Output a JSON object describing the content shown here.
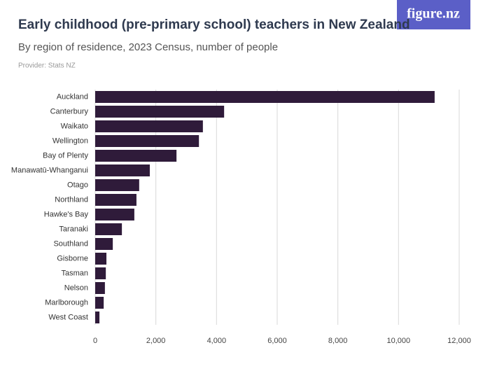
{
  "logo": "figure.nz",
  "chart_data": {
    "type": "bar",
    "orientation": "horizontal",
    "title": "Early childhood (pre-primary school) teachers in New Zealand",
    "subtitle": "By region of residence, 2023 Census, number of people",
    "provider": "Provider: Stats NZ",
    "categories": [
      "Auckland",
      "Canterbury",
      "Waikato",
      "Wellington",
      "Bay of Plenty",
      "Manawatū-Whanganui",
      "Otago",
      "Northland",
      "Hawke's Bay",
      "Taranaki",
      "Southland",
      "Gisborne",
      "Tasman",
      "Nelson",
      "Marlborough",
      "West Coast"
    ],
    "values": [
      11190,
      4250,
      3550,
      3420,
      2680,
      1800,
      1450,
      1360,
      1290,
      880,
      580,
      370,
      350,
      320,
      280,
      140
    ],
    "color": "#2f1b3a",
    "xlim": [
      0,
      12000
    ],
    "xticks": [
      0,
      {
        "value": 2000,
        "label": "2,000"
      },
      {
        "value": 4000,
        "label": "4,000"
      },
      {
        "value": 6000,
        "label": "6,000"
      },
      {
        "value": 8000,
        "label": "8,000"
      },
      {
        "value": 10000,
        "label": "10,000"
      },
      {
        "value": 12000,
        "label": "12,000"
      }
    ],
    "grid": true
  }
}
